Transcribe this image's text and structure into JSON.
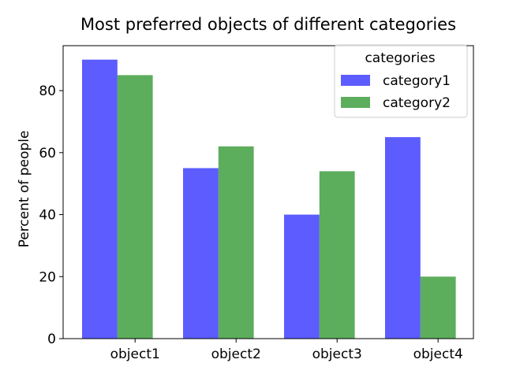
{
  "chart_data": {
    "type": "bar",
    "title": "Most preferred objects of different categories",
    "xlabel": "",
    "ylabel": "Percent of people",
    "categories": [
      "object1",
      "object2",
      "object3",
      "object4"
    ],
    "series": [
      {
        "name": "category1",
        "values": [
          90,
          55,
          40,
          65
        ],
        "color": "#3333ff"
      },
      {
        "name": "category2",
        "values": [
          85,
          62,
          54,
          20
        ],
        "color": "#339933"
      }
    ],
    "ylim": [
      0,
      94.5
    ],
    "yticks": [
      0,
      20,
      40,
      60,
      80
    ],
    "legend": {
      "title": "categories",
      "placement": "top-right"
    },
    "grid": false
  }
}
